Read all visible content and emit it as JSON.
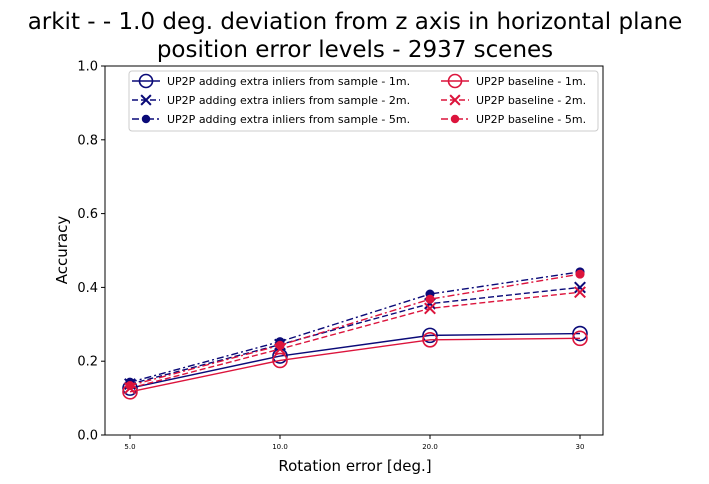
{
  "chart_data": {
    "type": "line",
    "title_lines": [
      "arkit -  - 1.0 deg. deviation from z axis in horizontal plane",
      "position error levels - 2937 scenes"
    ],
    "xlabel": "Rotation error [deg.]",
    "ylabel": "Accuracy",
    "categories": [
      "5.0",
      "10.0",
      "20.0",
      "30"
    ],
    "ylim": [
      0,
      1.0
    ],
    "yticks": [
      "0.0",
      "0.2",
      "0.4",
      "0.6",
      "0.8",
      "1.0"
    ],
    "grid": false,
    "legend_position": "top",
    "colors": {
      "extra_inliers": "#0a0a78",
      "baseline": "#dc143c"
    },
    "series": [
      {
        "name": "UP2P adding extra inliers from sample - 1m.",
        "color": "#0a0a78",
        "dash": "solid",
        "marker": "circle-open",
        "values": [
          0.127,
          0.214,
          0.27,
          0.275
        ]
      },
      {
        "name": "UP2P adding extra inliers from sample - 2m.",
        "color": "#0a0a78",
        "dash": "dashed",
        "marker": "x",
        "values": [
          0.138,
          0.245,
          0.356,
          0.4
        ]
      },
      {
        "name": "UP2P adding extra inliers from sample - 5m.",
        "color": "#0a0a78",
        "dash": "dashdot",
        "marker": "dot",
        "values": [
          0.143,
          0.253,
          0.382,
          0.442
        ]
      },
      {
        "name": "UP2P baseline - 1m.",
        "color": "#dc143c",
        "dash": "solid",
        "marker": "circle-open",
        "values": [
          0.117,
          0.202,
          0.258,
          0.262
        ]
      },
      {
        "name": "UP2P baseline - 2m.",
        "color": "#dc143c",
        "dash": "dashed",
        "marker": "x",
        "values": [
          0.127,
          0.233,
          0.343,
          0.387
        ]
      },
      {
        "name": "UP2P baseline - 5m.",
        "color": "#dc143c",
        "dash": "dashdot",
        "marker": "dot",
        "values": [
          0.134,
          0.243,
          0.368,
          0.436
        ]
      }
    ]
  }
}
